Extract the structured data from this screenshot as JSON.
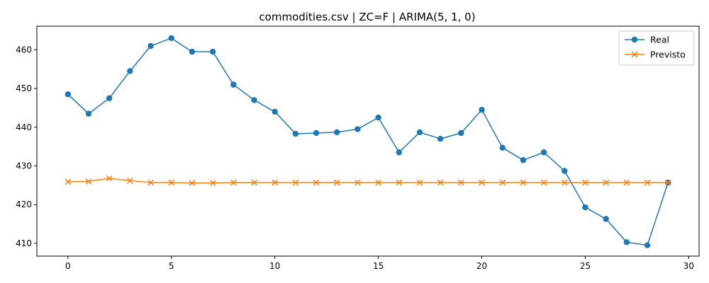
{
  "chart_data": {
    "type": "line",
    "title": "commodities.csv | ZC=F | ARIMA(5, 1, 0)",
    "xlabel": "",
    "ylabel": "",
    "x": [
      0,
      1,
      2,
      3,
      4,
      5,
      6,
      7,
      8,
      9,
      10,
      11,
      12,
      13,
      14,
      15,
      16,
      17,
      18,
      19,
      20,
      21,
      22,
      23,
      24,
      25,
      26,
      27,
      28,
      29
    ],
    "xlim": [
      -1.5,
      30.5
    ],
    "ylim": [
      406.7,
      466.1
    ],
    "x_ticks": [
      0,
      5,
      10,
      15,
      20,
      25,
      30
    ],
    "y_ticks": [
      410,
      420,
      430,
      440,
      450,
      460
    ],
    "grid": false,
    "legend_position": "top-right",
    "series": [
      {
        "name": "Real",
        "color": "#1f77b4",
        "marker": "circle",
        "values": [
          448.5,
          443.5,
          447.5,
          454.5,
          461.0,
          463.0,
          459.5,
          459.5,
          451.0,
          447.0,
          444.0,
          438.3,
          438.5,
          438.7,
          439.5,
          442.5,
          433.5,
          438.7,
          437.0,
          438.5,
          444.5,
          434.7,
          431.5,
          433.5,
          428.7,
          419.3,
          416.3,
          410.3,
          409.5,
          425.7
        ]
      },
      {
        "name": "Previsto",
        "color": "#ff7f0e",
        "marker": "x",
        "values": [
          425.9,
          426.0,
          426.8,
          426.2,
          425.7,
          425.7,
          425.6,
          425.6,
          425.7,
          425.7,
          425.7,
          425.7,
          425.7,
          425.7,
          425.7,
          425.7,
          425.7,
          425.7,
          425.7,
          425.7,
          425.7,
          425.7,
          425.7,
          425.7,
          425.7,
          425.7,
          425.7,
          425.7,
          425.7,
          425.7
        ]
      }
    ]
  }
}
